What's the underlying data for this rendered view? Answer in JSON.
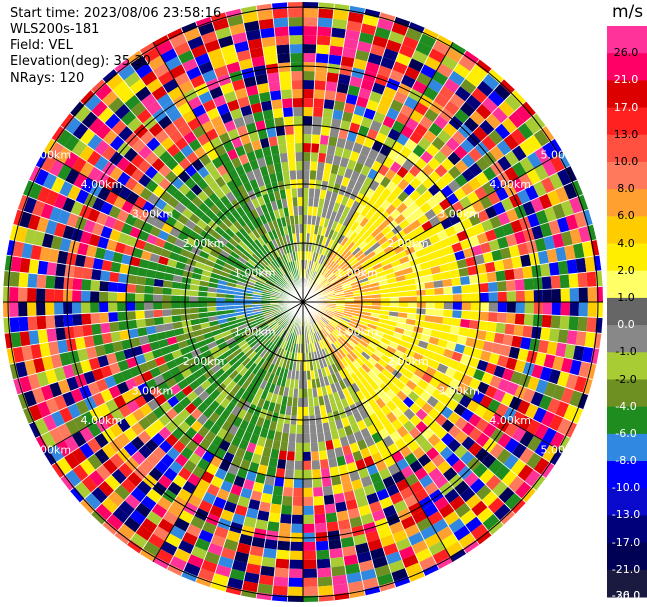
{
  "header": {
    "start_time": "Start time: 2023/08/06 23:58:16",
    "station": "WLS200s-181",
    "field": "Field: VEL",
    "elevation": "Elevation(deg): 35.30",
    "nrays": "NRays: 120"
  },
  "ring_labels": [
    "1.00km",
    "2.00km",
    "3.00km",
    "4.00km",
    "5.00km"
  ],
  "colorbar": {
    "unit": "m/s",
    "ticks": [
      "26.0",
      "21.0",
      "17.0",
      "13.0",
      "10.0",
      "8.0",
      "6.0",
      "4.0",
      "2.0",
      "1.0",
      "0.0",
      "-1.0",
      "-2.0",
      "-4.0",
      "-6.0",
      "-8.0",
      "-10.0",
      "-13.0",
      "-17.0",
      "-21.0",
      "-26.0",
      "-30.0"
    ],
    "colors": [
      "#ff3399",
      "#ff0066",
      "#dd0000",
      "#ff2020",
      "#ff5040",
      "#ff7a5c",
      "#ffa030",
      "#ffcc00",
      "#ffee00",
      "#ffff66",
      "#666666",
      "#888888",
      "#a8cc33",
      "#6e8f22",
      "#1e8c1e",
      "#3088e0",
      "#0000ff",
      "#0a0acc",
      "#00007a",
      "#000055",
      "#1a1a40"
    ]
  }
}
